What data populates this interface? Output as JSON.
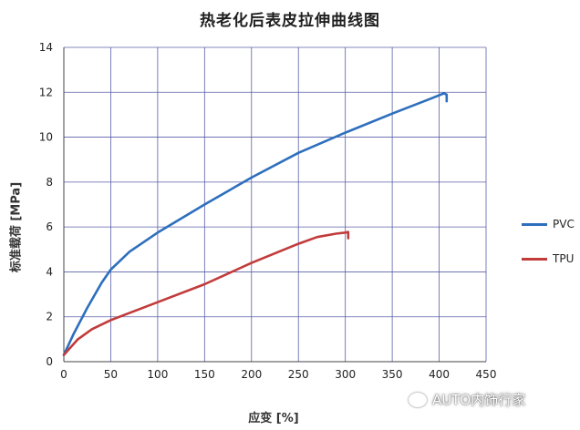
{
  "chart_data": {
    "type": "line",
    "title": "热老化后表皮拉伸曲线图",
    "xlabel": "应变 [%]",
    "ylabel": "标准载荷 [MPa]",
    "xlim": [
      0,
      450
    ],
    "ylim": [
      0,
      14
    ],
    "x_ticks": [
      0,
      50,
      100,
      150,
      200,
      250,
      300,
      350,
      400,
      450
    ],
    "y_ticks": [
      0,
      2,
      4,
      6,
      8,
      10,
      12,
      14
    ],
    "x_tick_labels": [
      "0",
      "50",
      "100",
      "150",
      "200",
      "250",
      "300",
      "350",
      "400",
      "450"
    ],
    "y_tick_labels": [
      "0",
      "2",
      "4",
      "6",
      "8",
      "10",
      "12",
      "14"
    ],
    "grid": true,
    "legend": "right",
    "series": [
      {
        "name": "PVC",
        "color": "#2e6fbd",
        "points": [
          [
            0,
            0.3
          ],
          [
            10,
            1.2
          ],
          [
            25,
            2.4
          ],
          [
            40,
            3.5
          ],
          [
            50,
            4.1
          ],
          [
            70,
            4.9
          ],
          [
            100,
            5.75
          ],
          [
            150,
            7.0
          ],
          [
            200,
            8.2
          ],
          [
            250,
            9.3
          ],
          [
            300,
            10.2
          ],
          [
            350,
            11.05
          ],
          [
            390,
            11.7
          ],
          [
            405,
            11.95
          ],
          [
            408,
            11.9
          ],
          [
            408,
            11.6
          ]
        ]
      },
      {
        "name": "TPU",
        "color": "#c23b3b",
        "points": [
          [
            0,
            0.3
          ],
          [
            15,
            1.0
          ],
          [
            30,
            1.45
          ],
          [
            50,
            1.85
          ],
          [
            100,
            2.65
          ],
          [
            150,
            3.45
          ],
          [
            200,
            4.4
          ],
          [
            250,
            5.25
          ],
          [
            270,
            5.55
          ],
          [
            290,
            5.7
          ],
          [
            300,
            5.75
          ],
          [
            303,
            5.78
          ],
          [
            303,
            5.5
          ]
        ]
      }
    ]
  },
  "watermark": {
    "text": "AUTO内饰行家",
    "icon": "wechat-icon"
  }
}
